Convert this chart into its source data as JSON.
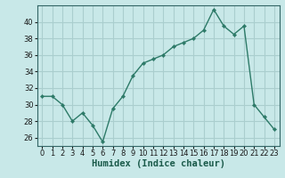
{
  "x": [
    0,
    1,
    2,
    3,
    4,
    5,
    6,
    7,
    8,
    9,
    10,
    11,
    12,
    13,
    14,
    15,
    16,
    17,
    18,
    19,
    20,
    21,
    22,
    23
  ],
  "y": [
    31,
    31,
    30,
    28,
    29,
    27.5,
    25.5,
    29.5,
    31,
    33.5,
    35,
    35.5,
    36,
    37,
    37.5,
    38,
    39,
    41.5,
    39.5,
    38.5,
    39.5,
    30,
    28.5,
    27
  ],
  "line_color": "#2d7a68",
  "marker_color": "#2d7a68",
  "bg_color": "#c8e8e8",
  "grid_color": "#aacece",
  "xlabel": "Humidex (Indice chaleur)",
  "ylim": [
    25,
    42
  ],
  "yticks": [
    26,
    28,
    30,
    32,
    34,
    36,
    38,
    40
  ],
  "xlim": [
    -0.5,
    23.5
  ],
  "xlabel_fontsize": 7.5,
  "tick_fontsize": 6.0
}
